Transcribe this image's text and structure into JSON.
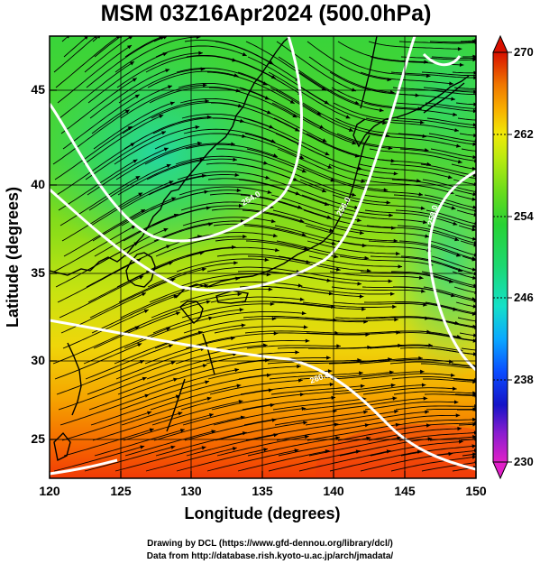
{
  "title": "MSM 03Z16Apr2024 (500.0hPa)",
  "xlabel": "Longitude (degrees)",
  "ylabel": "Latitude  (degrees)",
  "credits": {
    "line1": "Drawing by DCL (https://www.gfd-dennou.org/library/dcl/)",
    "line2": "Data from http://database.rish.kyoto-u.ac.jp/arch/jmadata/"
  },
  "map": {
    "lon_range": [
      120,
      150
    ],
    "lat_range": [
      22.4,
      47.6
    ],
    "lon_ticks": [
      "120",
      "125",
      "130",
      "135",
      "140",
      "145",
      "150"
    ],
    "lat_ticks": [
      "25",
      "30",
      "35",
      "40",
      "45"
    ],
    "field": "temperature (K) shaded, streamlines of wind, white isotherms",
    "contour_labels": [
      "254.0",
      "256.0",
      "258.0",
      "260.0"
    ]
  },
  "colorbar": {
    "range": [
      230,
      270
    ],
    "ticks": [
      "230",
      "238",
      "246",
      "254",
      "262",
      "270"
    ],
    "colors": [
      "#e020c8",
      "#8a1ccf",
      "#1414c8",
      "#0a4cff",
      "#0aa8ff",
      "#14e0c8",
      "#1cd870",
      "#28d234",
      "#6adc1c",
      "#b8ea10",
      "#f0ea08",
      "#f8b000",
      "#f07800",
      "#e03c00",
      "#d81000"
    ]
  }
}
